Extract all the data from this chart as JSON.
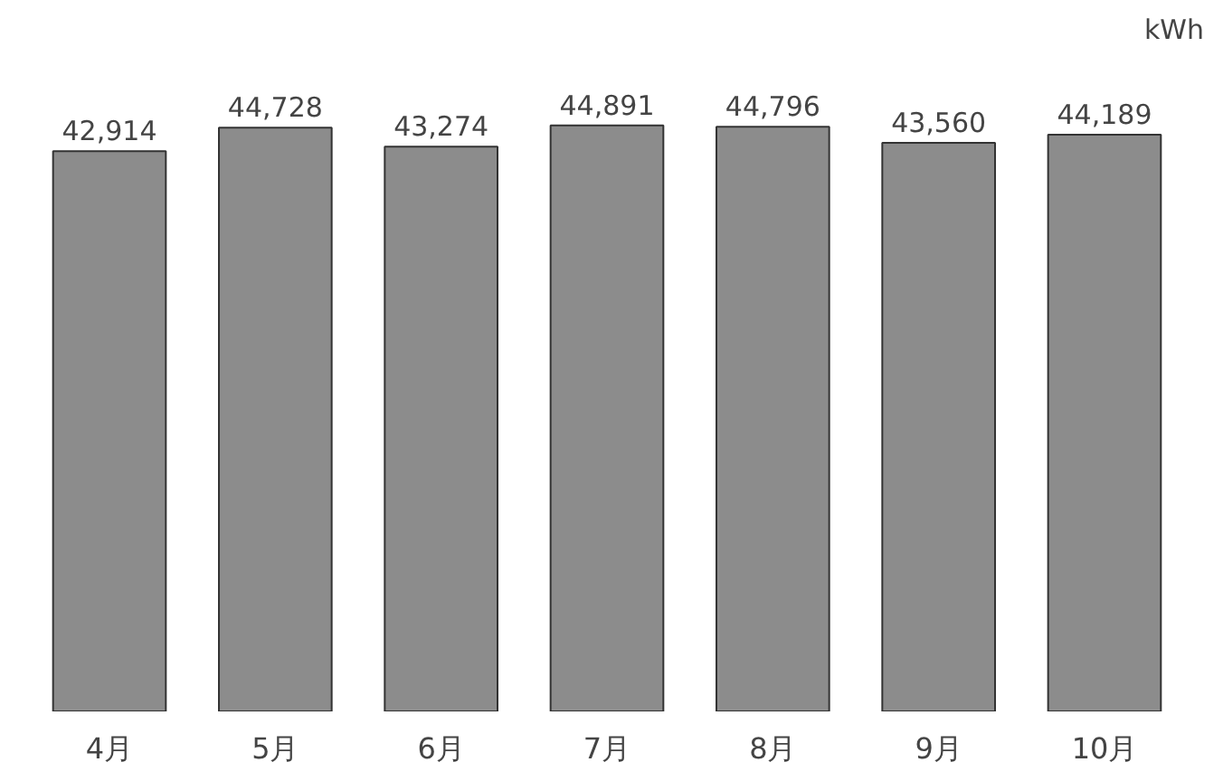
{
  "chart_data": {
    "type": "bar",
    "ylabel": "kWh",
    "categories": [
      "4月",
      "5月",
      "6月",
      "7月",
      "8月",
      "9月",
      "10月"
    ],
    "values": [
      42914,
      44728,
      43274,
      44891,
      44796,
      43560,
      44189
    ],
    "value_labels": [
      "42,914",
      "44,728",
      "43,274",
      "44,891",
      "44,796",
      "43,560",
      "44,189"
    ],
    "color": "#8c8c8c"
  }
}
